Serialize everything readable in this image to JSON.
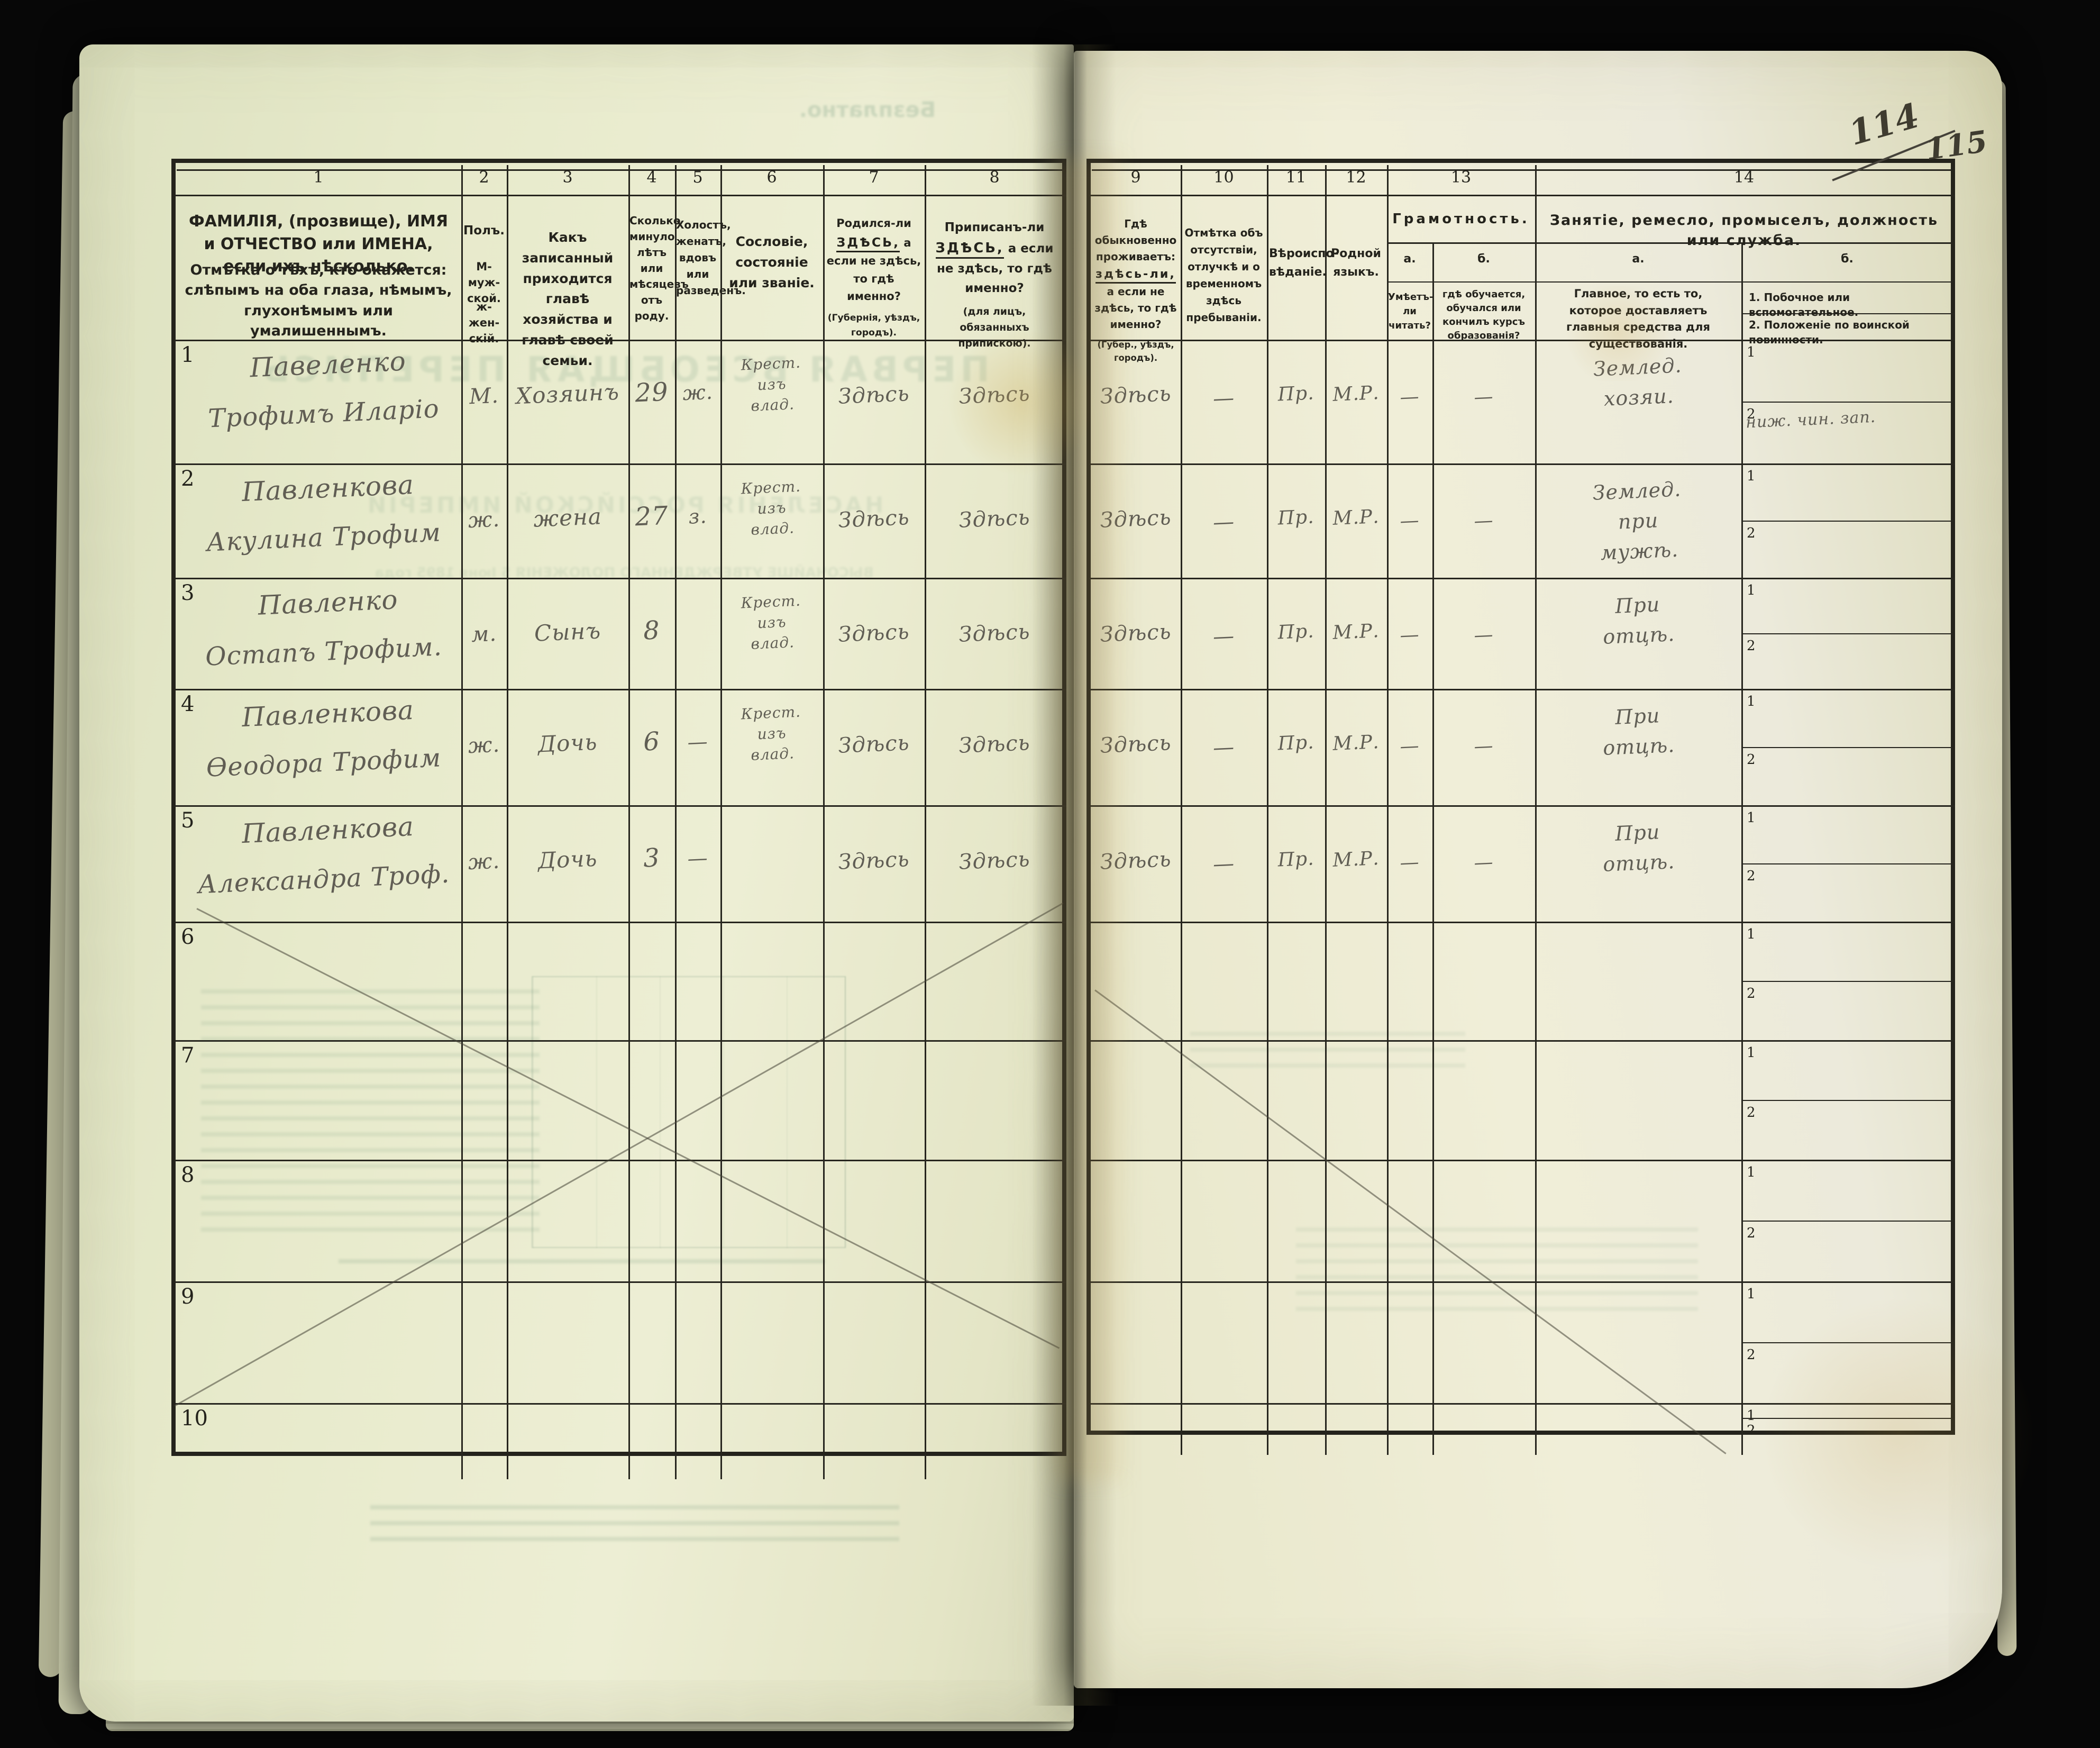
{
  "page": {
    "number_struck": "114",
    "number": "115"
  },
  "colors": {
    "paper": "#eaebd0",
    "ink": "#24231c",
    "pencil": "#55524a",
    "bleed_green": "#8fae93",
    "background": "#060606"
  },
  "bleed": {
    "free_label": "Безплатно.",
    "title1": "ПЕРВАЯ ВСЕОБЩАЯ ПЕРЕПИСЬ",
    "title2": "НАСЕЛЕНІЯ РОССІЙСКОЙ ИМПЕРІИ",
    "title3": "ВЫСОЧАЙШЕ УТВЕРЖДЕННАГО ПОЛОЖЕНІЯ 5 Іюня 1895 года"
  },
  "table": {
    "column_numbers": [
      "1",
      "2",
      "3",
      "4",
      "5",
      "6",
      "7",
      "8",
      "9",
      "10",
      "11",
      "12",
      "13",
      "14"
    ],
    "sub_labels": {
      "first": "1",
      "second": "2"
    },
    "empty_row_numbers": [
      "6",
      "7",
      "8",
      "9",
      "10"
    ],
    "headers": {
      "c1a": "ФАМИЛІЯ, (прозвище), ИМЯ и ОТЧЕСТВО или ИМЕНА, если ихъ нѣсколько.",
      "c1b": "Отмѣтка о тѣхъ, кто окажется: слѣпымъ на оба глаза, нѣмымъ, глухонѣмымъ или умалишеннымъ.",
      "c2_title": "Полъ.",
      "c2_male": "М-муж-ской.",
      "c2_female": "ж-жен-скій.",
      "c3": "Какъ записанный приходится главѣ хозяйства и главѣ своей семьи.",
      "c4": "Сколько минуло лѣтъ или мѣсяцевъ отъ роду.",
      "c5": "Холостъ, женатъ, вдовъ или разведенъ.",
      "c6": "Сословіе, состояніе или званіе.",
      "c7_pre": "Родился-ли",
      "c7_here": "ЗДѢСЬ,",
      "c7_rest": "а если не здѣсь, то гдѣ именно?",
      "c7_note": "(Губернія, уѣздъ, городъ).",
      "c8_pre": "Приписанъ-ли",
      "c8_here": "ЗДѢСЬ,",
      "c8_rest": "а если не здѣсь, то гдѣ именно?",
      "c8_note": "(для лицъ, обязанныхъ припискою).",
      "c9_pre": "Гдѣ обыкновенно проживаетъ:",
      "c9_here": "здѣсь-ли,",
      "c9_rest": "а если не здѣсь, то гдѣ именно?",
      "c9_note": "(Губер., уѣздъ, городъ).",
      "c10": "Отмѣтка объ отсутствіи, отлучкѣ и о временномъ здѣсь пребываніи.",
      "c11": "Вѣроиспо­вѣданіе.",
      "c12": "Родной языкъ.",
      "c13_title": "Грамотность.",
      "c13_a": "а.",
      "c13_b": "б.",
      "c13_a_text": "Умѣетъ-ли читать?",
      "c13_b_text": "гдѣ обучается, обучался или кончилъ курсъ образованія?",
      "c14_title": "Занятіе, ремесло, промыселъ, должность или служба.",
      "c14_a": "а.",
      "c14_b": "б.",
      "c14_a_text": "Главное, то есть то, которое доставляетъ главныя средства для существованія.",
      "c14_b1": "1. Побочное или вспомогательное.",
      "c14_b2": "2. Положеніе по воинской повинности."
    },
    "rows": [
      {
        "num": "1",
        "name1": "Павеленко",
        "name2": "Трофимъ Иларіо",
        "sex": "М.",
        "relation": "Хозяинъ",
        "age": "29",
        "marital": "ж.",
        "estate": "Крест.\nизъ\nвлад.",
        "born": "Здѣсь",
        "registered": "Здѣсь",
        "residence": "Здѣсь",
        "absence": "—",
        "religion": "Пр.",
        "language": "М.Р.",
        "literacy_read": "—",
        "literacy_school": "—",
        "occupation": "Землед.\nхозяи.",
        "military": "ниж. чин. зап."
      },
      {
        "num": "2",
        "name1": "Павленкова",
        "name2": "Акулина Трофим",
        "sex": "ж.",
        "relation": "жена",
        "age": "27",
        "marital": "з.",
        "estate": "Крест.\nизъ\nвлад.",
        "born": "Здѣсь",
        "registered": "Здѣсь",
        "residence": "Здѣсь",
        "absence": "—",
        "religion": "Пр.",
        "language": "М.Р.",
        "literacy_read": "—",
        "literacy_school": "—",
        "occupation": "Землед.\nпри\nмужѣ.",
        "military": ""
      },
      {
        "num": "3",
        "name1": "Павленко",
        "name2": "Остапъ Трофим.",
        "sex": "м.",
        "relation": "Сынъ",
        "age": "8",
        "marital": "",
        "estate": "Крест.\nизъ\nвлад.",
        "born": "Здѣсь",
        "registered": "Здѣсь",
        "residence": "Здѣсь",
        "absence": "—",
        "religion": "Пр.",
        "language": "М.Р.",
        "literacy_read": "—",
        "literacy_school": "—",
        "occupation": "При\nотцѣ.",
        "military": ""
      },
      {
        "num": "4",
        "name1": "Павленкова",
        "name2": "Ѳеодора Трофим",
        "sex": "ж.",
        "relation": "Дочь",
        "age": "6",
        "marital": "—",
        "estate": "Крест.\nизъ\nвлад.",
        "born": "Здѣсь",
        "registered": "Здѣсь",
        "residence": "Здѣсь",
        "absence": "—",
        "religion": "Пр.",
        "language": "М.Р.",
        "literacy_read": "—",
        "literacy_school": "—",
        "occupation": "При\nотцѣ.",
        "military": ""
      },
      {
        "num": "5",
        "name1": "Павленкова",
        "name2": "Александра Троф.",
        "sex": "ж.",
        "relation": "Дочь",
        "age": "3",
        "marital": "—",
        "estate": "",
        "born": "Здѣсь",
        "registered": "Здѣсь",
        "residence": "Здѣсь",
        "absence": "—",
        "religion": "Пр.",
        "language": "М.Р.",
        "literacy_read": "—",
        "literacy_school": "—",
        "occupation": "При\nотцѣ.",
        "military": ""
      }
    ]
  }
}
